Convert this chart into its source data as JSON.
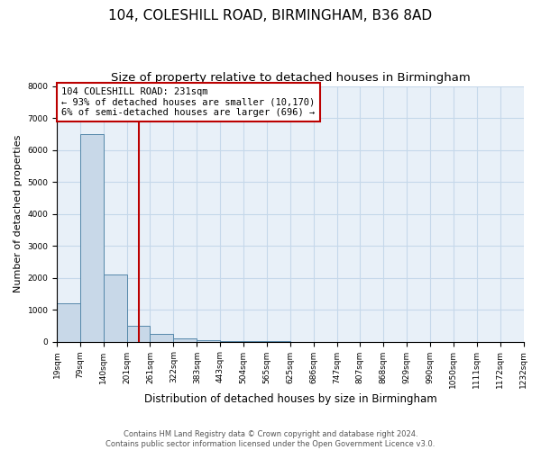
{
  "title": "104, COLESHILL ROAD, BIRMINGHAM, B36 8AD",
  "subtitle": "Size of property relative to detached houses in Birmingham",
  "xlabel": "Distribution of detached houses by size in Birmingham",
  "ylabel": "Number of detached properties",
  "bar_values": [
    1200,
    6500,
    2100,
    500,
    250,
    100,
    50,
    30,
    10,
    5,
    2,
    1,
    0,
    0,
    0,
    0,
    0,
    0,
    0,
    0
  ],
  "bin_edges": [
    19,
    79,
    140,
    201,
    261,
    322,
    383,
    443,
    504,
    565,
    625,
    686,
    747,
    807,
    868,
    929,
    990,
    1050,
    1111,
    1172,
    1232
  ],
  "tick_labels": [
    "19sqm",
    "79sqm",
    "140sqm",
    "201sqm",
    "261sqm",
    "322sqm",
    "383sqm",
    "443sqm",
    "504sqm",
    "565sqm",
    "625sqm",
    "686sqm",
    "747sqm",
    "807sqm",
    "868sqm",
    "929sqm",
    "990sqm",
    "1050sqm",
    "1111sqm",
    "1172sqm",
    "1232sqm"
  ],
  "bar_color": "#c8d8e8",
  "bar_edge_color": "#5588aa",
  "grid_color": "#c5d8ea",
  "bg_color": "#e8f0f8",
  "property_line_x": 231,
  "property_line_color": "#bb0000",
  "annotation_line1": "104 COLESHILL ROAD: 231sqm",
  "annotation_line2": "← 93% of detached houses are smaller (10,170)",
  "annotation_line3": "6% of semi-detached houses are larger (696) →",
  "annotation_box_color": "#bb0000",
  "ylim": [
    0,
    8000
  ],
  "yticks": [
    0,
    1000,
    2000,
    3000,
    4000,
    5000,
    6000,
    7000,
    8000
  ],
  "footer_line1": "Contains HM Land Registry data © Crown copyright and database right 2024.",
  "footer_line2": "Contains public sector information licensed under the Open Government Licence v3.0.",
  "title_fontsize": 11,
  "subtitle_fontsize": 9.5,
  "tick_fontsize": 6.5,
  "ylabel_fontsize": 8,
  "xlabel_fontsize": 8.5,
  "annotation_fontsize": 7.5,
  "footer_fontsize": 6.0
}
